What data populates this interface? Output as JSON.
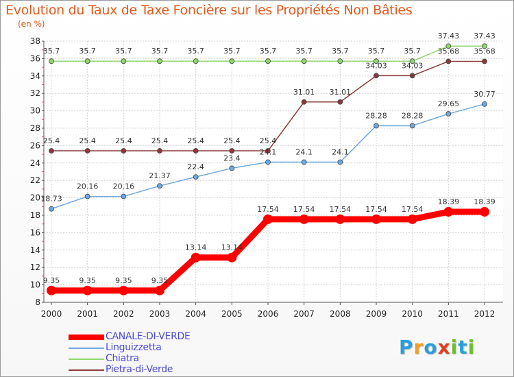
{
  "title": "Evolution du Taux de Taxe Foncière sur les Propriétés Non Bâties",
  "unit_label": "(en %)",
  "logo": {
    "letters": [
      {
        "ch": "P",
        "color": "#2aa0d8"
      },
      {
        "ch": "r",
        "color": "#f0a020"
      },
      {
        "ch": "o",
        "color": "#2aa0d8"
      },
      {
        "ch": "x",
        "color": "#e04020"
      },
      {
        "ch": "i",
        "color": "#6cbf2a"
      },
      {
        "ch": "t",
        "color": "#2aa0d8"
      },
      {
        "ch": "i",
        "color": "#6cbf2a"
      }
    ]
  },
  "chart_data": {
    "type": "line",
    "x": [
      "2000",
      "2001",
      "2002",
      "2003",
      "2004",
      "2005",
      "2006",
      "2007",
      "2008",
      "2009",
      "2010",
      "2011",
      "2012"
    ],
    "ylim": [
      8,
      38
    ],
    "yticks": [
      "8",
      "10",
      "12",
      "14",
      "16",
      "18",
      "20",
      "22",
      "24",
      "26",
      "28",
      "30",
      "32",
      "34",
      "36",
      "38"
    ],
    "grid": true,
    "legend_position": "bottom-left",
    "series": [
      {
        "name": "CANALE-DI-VERDE",
        "color": "#ff0000",
        "values": [
          9.35,
          9.35,
          9.35,
          9.35,
          13.14,
          13.14,
          17.54,
          17.54,
          17.54,
          17.54,
          17.54,
          18.39,
          18.39
        ],
        "labels": [
          "9.35",
          "9.35",
          "9.35",
          "9.35",
          "13.14",
          "13.14",
          "17.54",
          "17.54",
          "17.54",
          "17.54",
          "17.54",
          "18.39",
          "18.39"
        ]
      },
      {
        "name": "Linguizzetta",
        "color": "#6fa8dc",
        "values": [
          18.73,
          20.16,
          20.16,
          21.37,
          22.4,
          23.4,
          24.1,
          24.1,
          24.1,
          28.28,
          28.28,
          29.65,
          30.77
        ],
        "labels": [
          "18.73",
          "20.16",
          "20.16",
          "21.37",
          "22.4",
          "23.4",
          "24.1",
          "24.1",
          "24.1",
          "28.28",
          "28.28",
          "29.65",
          "30.77"
        ]
      },
      {
        "name": "Chiatra",
        "color": "#8fd66a",
        "values": [
          35.7,
          35.7,
          35.7,
          35.7,
          35.7,
          35.7,
          35.7,
          35.7,
          35.7,
          35.7,
          35.7,
          37.43,
          37.43
        ],
        "labels": [
          "35.7",
          "35.7",
          "35.7",
          "35.7",
          "35.7",
          "35.7",
          "35.7",
          "35.7",
          "35.7",
          "35.7",
          "35.7",
          "37.43",
          "37.43"
        ]
      },
      {
        "name": "Pietra-di-Verde",
        "color": "#8b3a3a",
        "values": [
          25.4,
          25.4,
          25.4,
          25.4,
          25.4,
          25.4,
          25.4,
          31.01,
          31.01,
          34.03,
          34.03,
          35.68,
          35.68
        ],
        "labels": [
          "25.4",
          "25.4",
          "25.4",
          "25.4",
          "25.4",
          "25.4",
          "25.4",
          "31.01",
          "31.01",
          "34.03",
          "34.03",
          "35.68",
          "35.68"
        ]
      }
    ]
  }
}
